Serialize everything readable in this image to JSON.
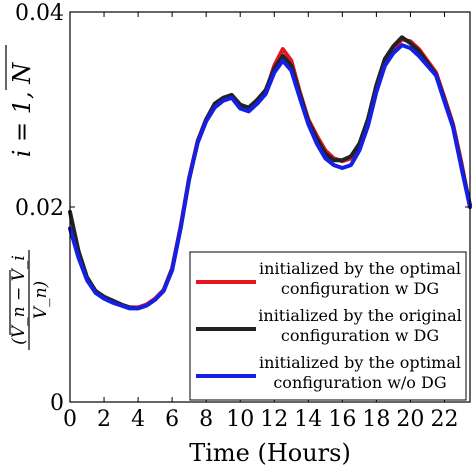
{
  "chart_data": {
    "type": "line",
    "xlabel": "Time (Hours)",
    "ylabel": {
      "numerator": "V_n − V_i",
      "denominator": "V_n",
      "condition": "i = 1, N"
    },
    "xlim": [
      0,
      23.5
    ],
    "ylim": [
      0,
      0.04
    ],
    "xticks": [
      0,
      2,
      4,
      6,
      8,
      10,
      12,
      14,
      16,
      18,
      20,
      22
    ],
    "yticks": [
      0,
      0.02,
      0.04
    ],
    "ytick_labels": [
      "0",
      "0.02",
      "0.04"
    ],
    "grid": false,
    "legend_position": "bottom-right",
    "series": [
      {
        "name": "initialized by the optimal configuration w DG",
        "color": "#e8141c",
        "x": [
          0,
          0.5,
          1,
          1.5,
          2,
          2.5,
          3,
          3.5,
          4,
          4.5,
          5,
          5.5,
          6,
          6.5,
          7,
          7.5,
          8,
          8.5,
          9,
          9.5,
          10,
          10.5,
          11,
          11.5,
          12,
          12.5,
          13,
          13.5,
          14,
          14.5,
          15,
          15.5,
          16,
          16.5,
          17,
          17.5,
          18,
          18.5,
          19,
          19.5,
          20,
          20.5,
          21,
          21.5,
          22,
          22.5,
          23,
          23.5
        ],
        "values": [
          0.0178,
          0.015,
          0.0127,
          0.0114,
          0.0107,
          0.0104,
          0.01,
          0.0097,
          0.0097,
          0.01,
          0.0106,
          0.0115,
          0.0137,
          0.018,
          0.023,
          0.0268,
          0.029,
          0.0303,
          0.0311,
          0.0314,
          0.0303,
          0.03,
          0.0308,
          0.0318,
          0.0345,
          0.0362,
          0.035,
          0.0318,
          0.029,
          0.0273,
          0.0258,
          0.025,
          0.0247,
          0.025,
          0.0262,
          0.0285,
          0.032,
          0.035,
          0.0362,
          0.0372,
          0.037,
          0.0362,
          0.035,
          0.0338,
          0.0312,
          0.0285,
          0.0245,
          0.02
        ]
      },
      {
        "name": "initialized by the original configuration w DG",
        "color": "#222222",
        "x": [
          0,
          0.5,
          1,
          1.5,
          2,
          2.5,
          3,
          3.5,
          4,
          4.5,
          5,
          5.5,
          6,
          6.5,
          7,
          7.5,
          8,
          8.5,
          9,
          9.5,
          10,
          10.5,
          11,
          11.5,
          12,
          12.5,
          13,
          13.5,
          14,
          14.5,
          15,
          15.5,
          16,
          16.5,
          17,
          17.5,
          18,
          18.5,
          19,
          19.5,
          20,
          20.5,
          21,
          21.5,
          22,
          22.5,
          23,
          23.5
        ],
        "values": [
          0.0195,
          0.0155,
          0.0128,
          0.0114,
          0.0108,
          0.0104,
          0.01,
          0.0097,
          0.0096,
          0.0099,
          0.0105,
          0.0114,
          0.0136,
          0.0178,
          0.0228,
          0.0267,
          0.029,
          0.0306,
          0.0312,
          0.0315,
          0.0305,
          0.0302,
          0.031,
          0.032,
          0.0342,
          0.0355,
          0.0345,
          0.0316,
          0.0288,
          0.027,
          0.0255,
          0.0248,
          0.0248,
          0.0252,
          0.0265,
          0.029,
          0.0325,
          0.0352,
          0.0365,
          0.0374,
          0.0368,
          0.036,
          0.0348,
          0.0336,
          0.031,
          0.0283,
          0.0242,
          0.0202
        ]
      },
      {
        "name": "initialized by the optimal configuration w/o DG",
        "color": "#1420e6",
        "x": [
          0,
          0.5,
          1,
          1.5,
          2,
          2.5,
          3,
          3.5,
          4,
          4.5,
          5,
          5.5,
          6,
          6.5,
          7,
          7.5,
          8,
          8.5,
          9,
          9.5,
          10,
          10.5,
          11,
          11.5,
          12,
          12.5,
          13,
          13.5,
          14,
          14.5,
          15,
          15.5,
          16,
          16.5,
          17,
          17.5,
          18,
          18.5,
          19,
          19.5,
          20,
          20.5,
          21,
          21.5,
          22,
          22.5,
          23,
          23.5
        ],
        "values": [
          0.0178,
          0.0148,
          0.0125,
          0.0112,
          0.0106,
          0.0102,
          0.0099,
          0.0096,
          0.0096,
          0.0099,
          0.0105,
          0.0114,
          0.0135,
          0.0178,
          0.0229,
          0.0266,
          0.0288,
          0.0302,
          0.0309,
          0.0312,
          0.0301,
          0.0298,
          0.0306,
          0.0316,
          0.0338,
          0.035,
          0.034,
          0.0312,
          0.0285,
          0.0265,
          0.025,
          0.0243,
          0.024,
          0.0243,
          0.0258,
          0.0283,
          0.0318,
          0.0345,
          0.0358,
          0.0366,
          0.0363,
          0.0355,
          0.0345,
          0.0335,
          0.0308,
          0.0282,
          0.024,
          0.02
        ]
      }
    ],
    "legend_lines": [
      [
        "initialized by the optimal",
        "configuration w DG"
      ],
      [
        "initialized by the original",
        "configuration w DG"
      ],
      [
        "initialized by the optimal",
        "configuration w/o DG"
      ]
    ]
  }
}
